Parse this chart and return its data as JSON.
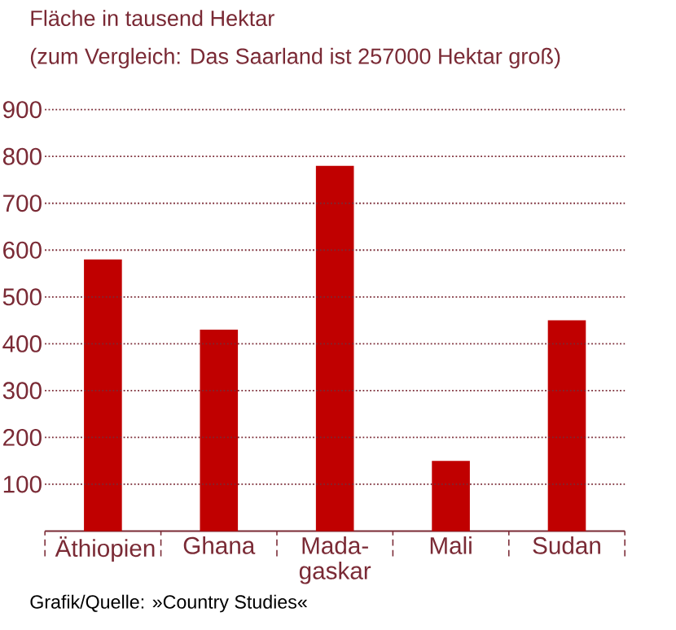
{
  "chart_data": {
    "type": "bar",
    "title": "Fläche in tausend Hektar",
    "subtitle": "(zum Vergleich: Das Saarland ist 257000 Hektar groß)",
    "categories": [
      "Äthiopien",
      "Ghana",
      "Mada- gaskar",
      "Mali",
      "Sudan"
    ],
    "values": [
      580,
      430,
      780,
      150,
      450
    ],
    "color": "#c00000",
    "ylim": [
      0,
      900
    ],
    "yticks": [
      100,
      200,
      300,
      400,
      500,
      600,
      700,
      800,
      900
    ],
    "grid": "y",
    "annotations": [
      "Grafik/Quelle: »Country Studies«"
    ]
  }
}
